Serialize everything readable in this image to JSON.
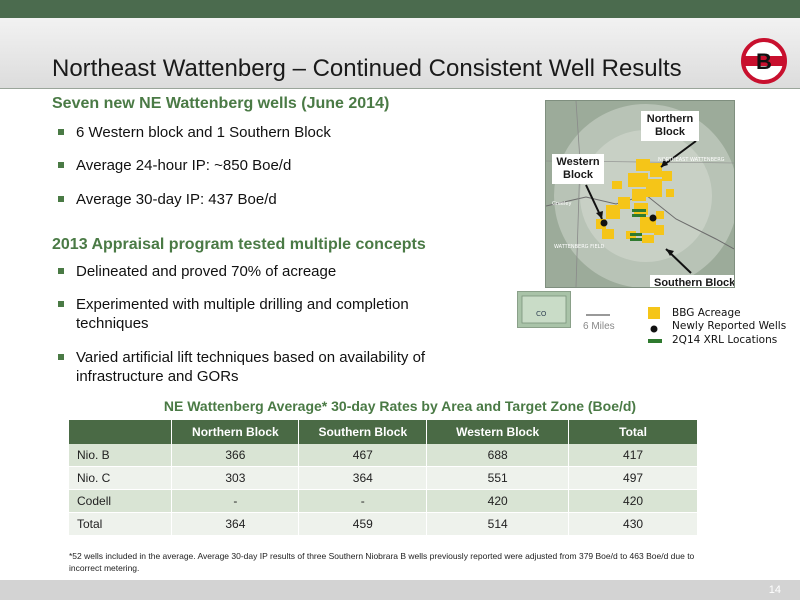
{
  "header": {
    "title": "Northeast Wattenberg – Continued Consistent Well Results",
    "logo_letter": "B"
  },
  "section1": {
    "heading": "Seven new NE Wattenberg wells (June 2014)",
    "bullets": [
      "6 Western block and 1 Southern Block",
      "Average 24-hour IP: ~850 Boe/d",
      "Average 30-day IP: 437 Boe/d"
    ]
  },
  "section2": {
    "heading": "2013 Appraisal program tested multiple concepts",
    "bullets": [
      "Delineated and proved 70% of acreage",
      "Experimented with multiple drilling and completion techniques",
      "Varied artificial lift techniques based on availability of infrastructure and GORs"
    ]
  },
  "map": {
    "label_northern": "Northern Block",
    "label_western": "Western Block",
    "label_southern": "Southern Block",
    "map_text_ne": "NORTHEAST WATTENBERG",
    "map_text_wf": "WATTENBERG FIELD",
    "map_text_greeley": "Greeley",
    "inset_text": "CO",
    "scale": "6 Miles",
    "legend": {
      "acreage": "BBG Acreage",
      "wells": "Newly Reported Wells",
      "xrl": "2Q14 XRL Locations"
    }
  },
  "table": {
    "title": "NE Wattenberg Average* 30-day Rates by Area and Target Zone (Boe/d)",
    "headers": [
      "",
      "Northern Block",
      "Southern Block",
      "Western Block",
      "Total"
    ],
    "rows": [
      [
        "Nio. B",
        "366",
        "467",
        "688",
        "417"
      ],
      [
        "Nio. C",
        "303",
        "364",
        "551",
        "497"
      ],
      [
        "Codell",
        "-",
        "-",
        "420",
        "420"
      ],
      [
        "Total",
        "364",
        "459",
        "514",
        "430"
      ]
    ]
  },
  "footnote": "*52 wells included in the average. Average 30-day IP results of three Southern Niobrara B wells previously reported were adjusted from 379 Boe/d to 463 Boe/d due to incorrect metering.",
  "page_number": "14",
  "colors": {
    "brand_green": "#4a7a45",
    "table_header": "#4a6a45",
    "logo_red": "#c8102e",
    "acreage_yellow": "#f5c518"
  }
}
